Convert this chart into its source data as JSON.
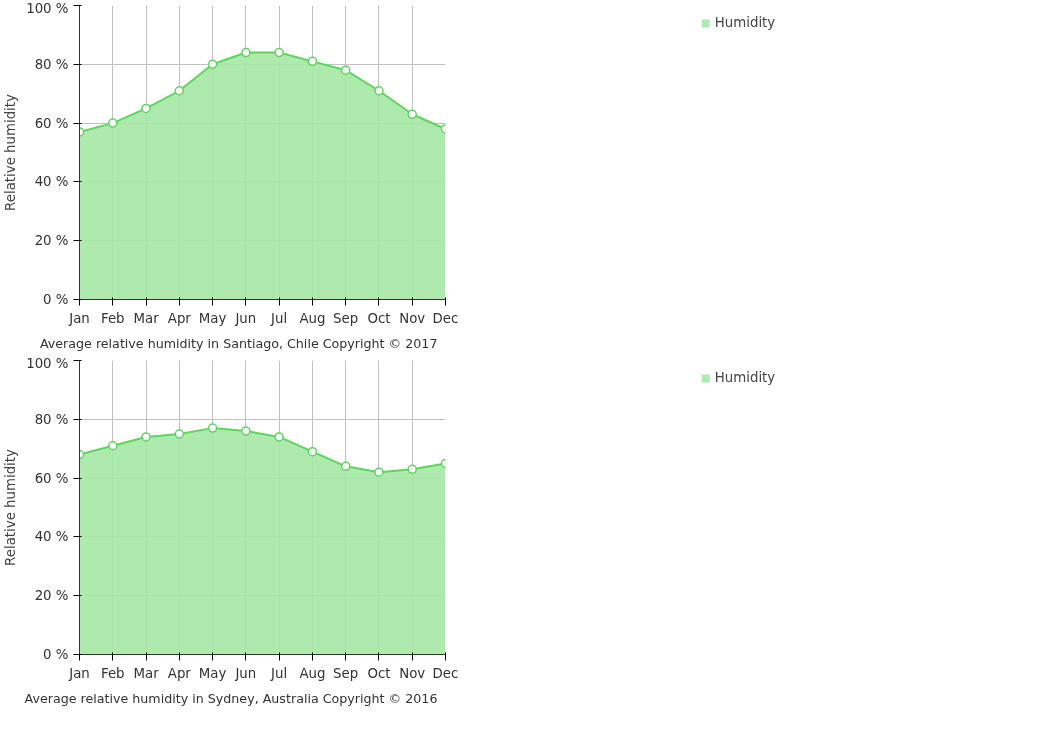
{
  "chart_data": [
    {
      "type": "area",
      "ylabel": "Relative humidity",
      "categories": [
        "Jan",
        "Feb",
        "Mar",
        "Apr",
        "May",
        "Jun",
        "Jul",
        "Aug",
        "Sep",
        "Oct",
        "Nov",
        "Dec"
      ],
      "series": [
        {
          "name": "Humidity",
          "color": "#5cd65c",
          "values": [
            57,
            60,
            65,
            71,
            80,
            84,
            84,
            81,
            78,
            71,
            63,
            58
          ]
        }
      ],
      "ylim": [
        0,
        100
      ],
      "yticks": [
        {
          "value": 0,
          "label": "0 %"
        },
        {
          "value": 20,
          "label": "20 %"
        },
        {
          "value": 40,
          "label": "40 %"
        },
        {
          "value": 60,
          "label": "60 %"
        },
        {
          "value": 80,
          "label": "80 %"
        },
        {
          "value": 100,
          "label": "100 %"
        }
      ],
      "grid": true,
      "legend": "top right",
      "marker": "circle",
      "annotations": [
        "Average relative humidity in Santiago, Chile   Copyright © 2017"
      ]
    },
    {
      "type": "area",
      "ylabel": "Relative humidity",
      "categories": [
        "Jan",
        "Feb",
        "Mar",
        "Apr",
        "May",
        "Jun",
        "Jul",
        "Aug",
        "Sep",
        "Oct",
        "Nov",
        "Dec"
      ],
      "series": [
        {
          "name": "Humidity",
          "color": "#5cd65c",
          "values": [
            68,
            71,
            74,
            75,
            77,
            76,
            74,
            69,
            64,
            62,
            63,
            65
          ]
        }
      ],
      "ylim": [
        0,
        100
      ],
      "yticks": [
        {
          "value": 0,
          "label": "0 %"
        },
        {
          "value": 20,
          "label": "20 %"
        },
        {
          "value": 40,
          "label": "40 %"
        },
        {
          "value": 60,
          "label": "60 %"
        },
        {
          "value": 80,
          "label": "80 %"
        },
        {
          "value": 100,
          "label": "100 %"
        }
      ],
      "grid": true,
      "legend": "top right",
      "marker": "circle",
      "annotations": [
        "Average relative humidity in Sydney, Australia   Copyright © 2016"
      ]
    }
  ]
}
